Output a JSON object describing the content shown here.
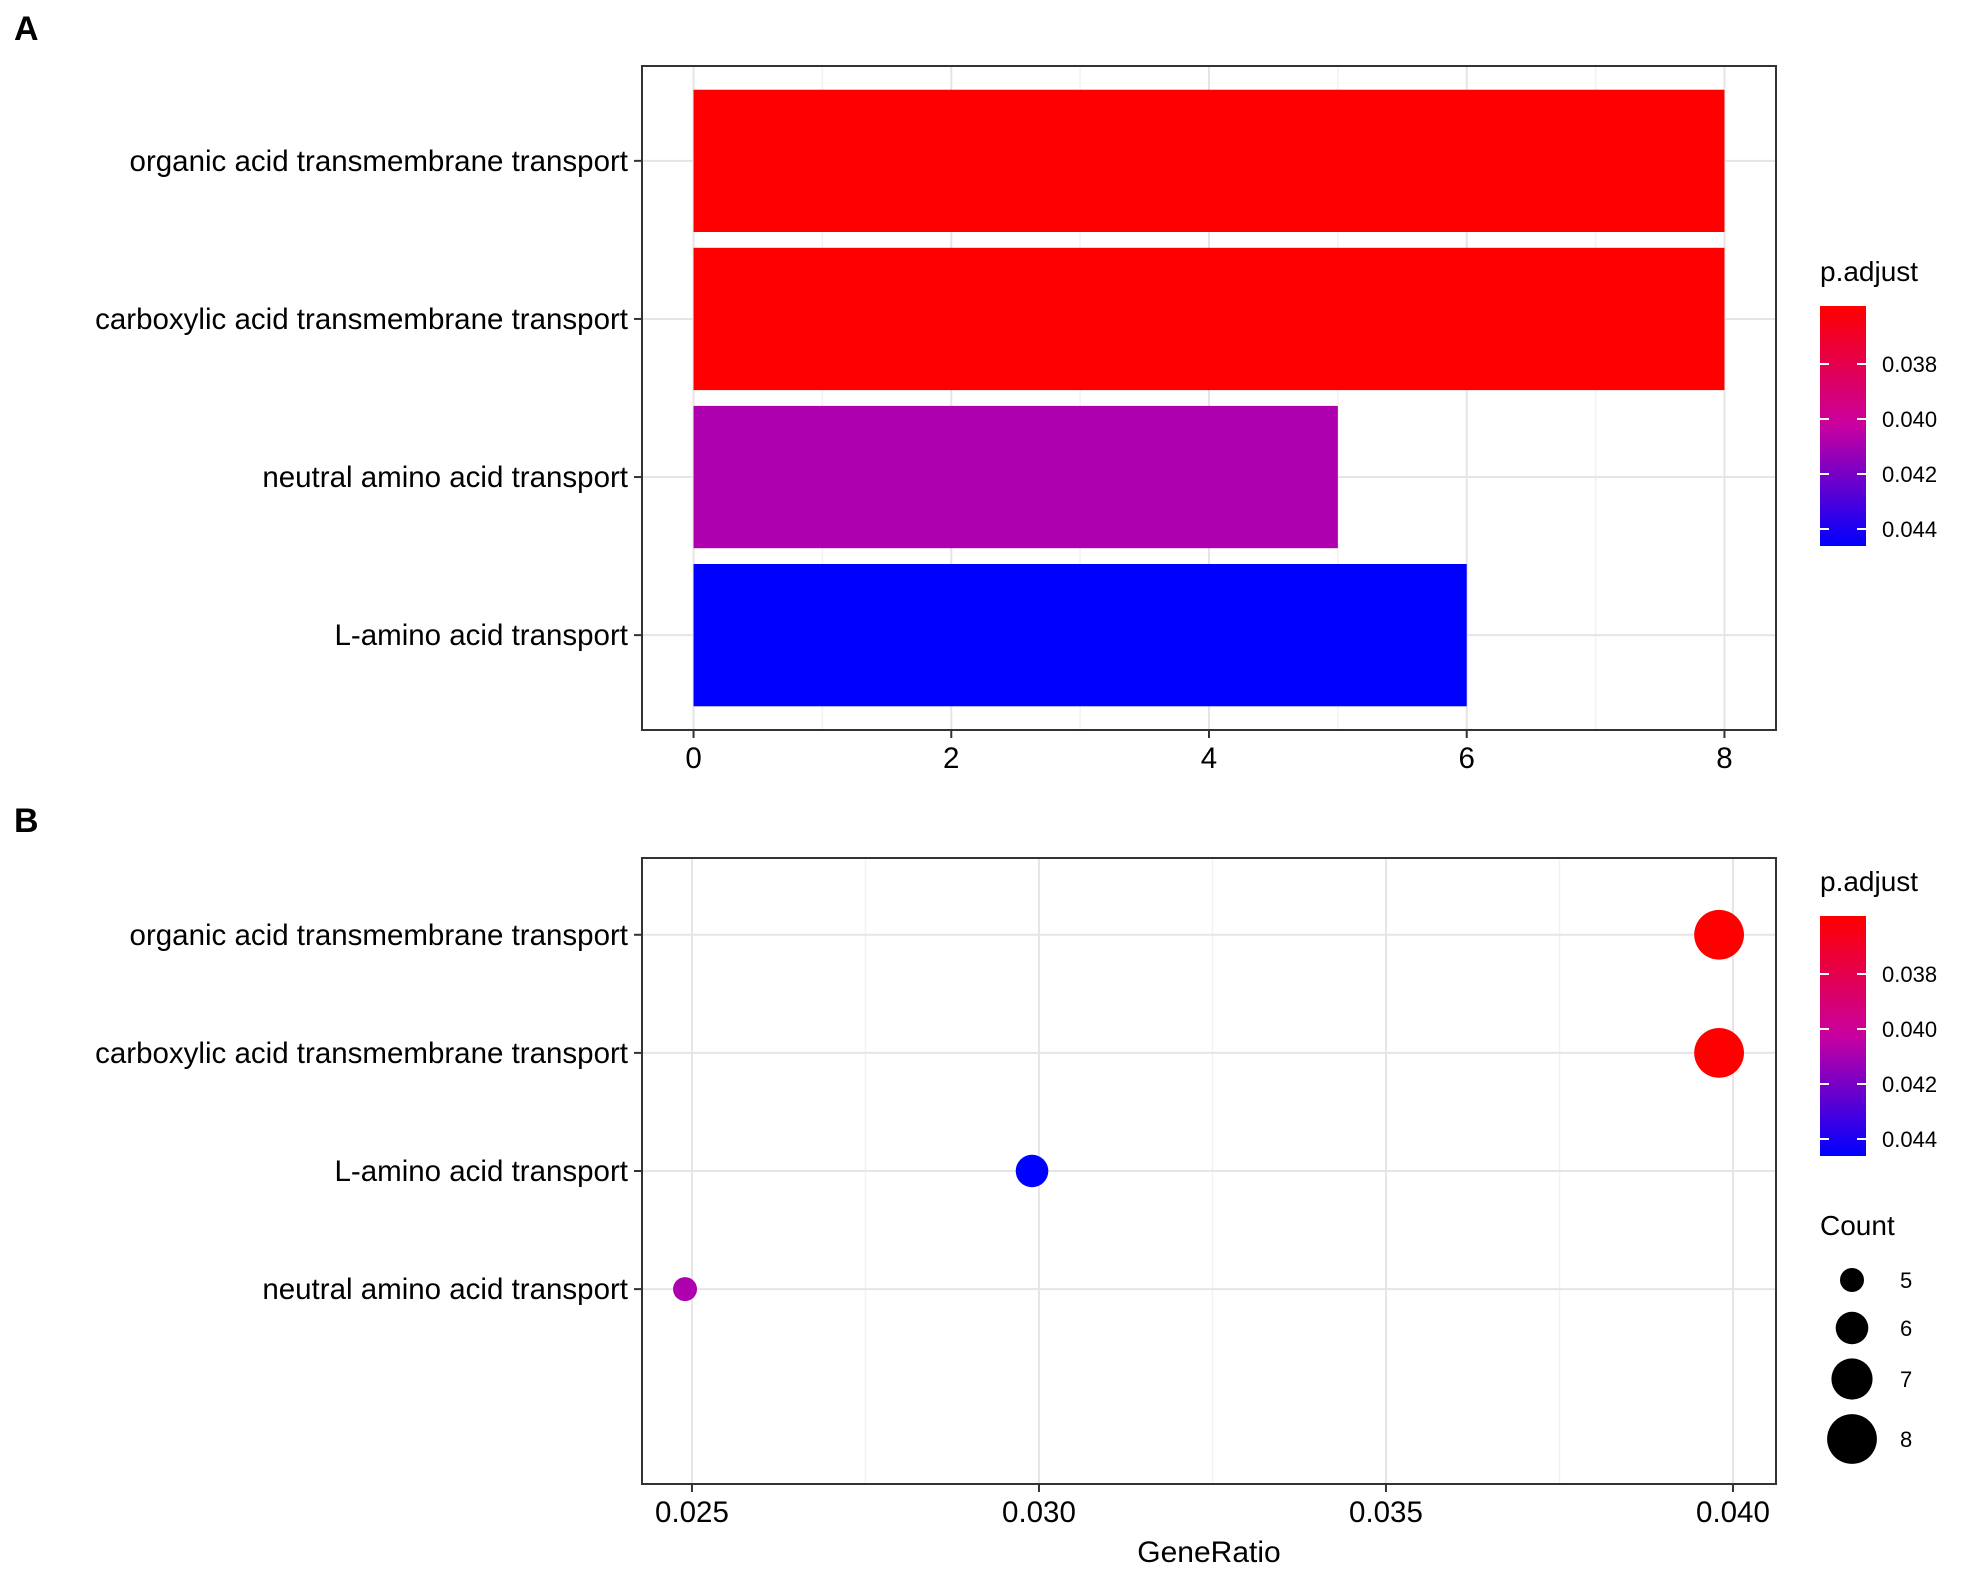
{
  "chart_data": [
    {
      "panel": "A",
      "type": "bar",
      "orientation": "horizontal",
      "categories": [
        "organic acid transmembrane transport",
        "carboxylic acid transmembrane transport",
        "neutral amino acid transport",
        "L-amino acid transport"
      ],
      "values": [
        8,
        8,
        5,
        6
      ],
      "colors": [
        "#FF0000",
        "#FF0000",
        "#AF00AF",
        "#0000FF"
      ],
      "xlim": [
        -0.4,
        8.4
      ],
      "xticks": [
        "0",
        "2",
        "4",
        "6",
        "8"
      ],
      "xlabel": "",
      "ylabel": "",
      "grid": true,
      "legend": {
        "title": "p.adjust",
        "placement": "right",
        "gradient_top": "#FF0000",
        "gradient_bottom": "#0000FF",
        "ticks": [
          "0.038",
          "0.040",
          "0.042",
          "0.044"
        ]
      }
    },
    {
      "panel": "B",
      "type": "scatter",
      "categories": [
        "organic acid transmembrane transport",
        "carboxylic acid transmembrane transport",
        "L-amino acid transport",
        "neutral amino acid transport"
      ],
      "x": [
        0.0398,
        0.0398,
        0.0299,
        0.0249
      ],
      "count": [
        8,
        8,
        6,
        5
      ],
      "colors": [
        "#FF0000",
        "#FF0000",
        "#0000FF",
        "#AF00AF"
      ],
      "xlim": [
        0.02428,
        0.04062
      ],
      "xticks": [
        "0.025",
        "0.030",
        "0.035",
        "0.040"
      ],
      "xlabel": "GeneRatio",
      "ylabel": "",
      "grid": true,
      "legend": {
        "title": "p.adjust",
        "placement": "right",
        "gradient_top": "#FF0000",
        "gradient_bottom": "#0000FF",
        "ticks": [
          "0.038",
          "0.040",
          "0.042",
          "0.044"
        ]
      },
      "size_legend": {
        "title": "Count",
        "values": [
          "5",
          "6",
          "7",
          "8"
        ]
      }
    }
  ],
  "panels": {
    "a_label": "A",
    "b_label": "B"
  }
}
